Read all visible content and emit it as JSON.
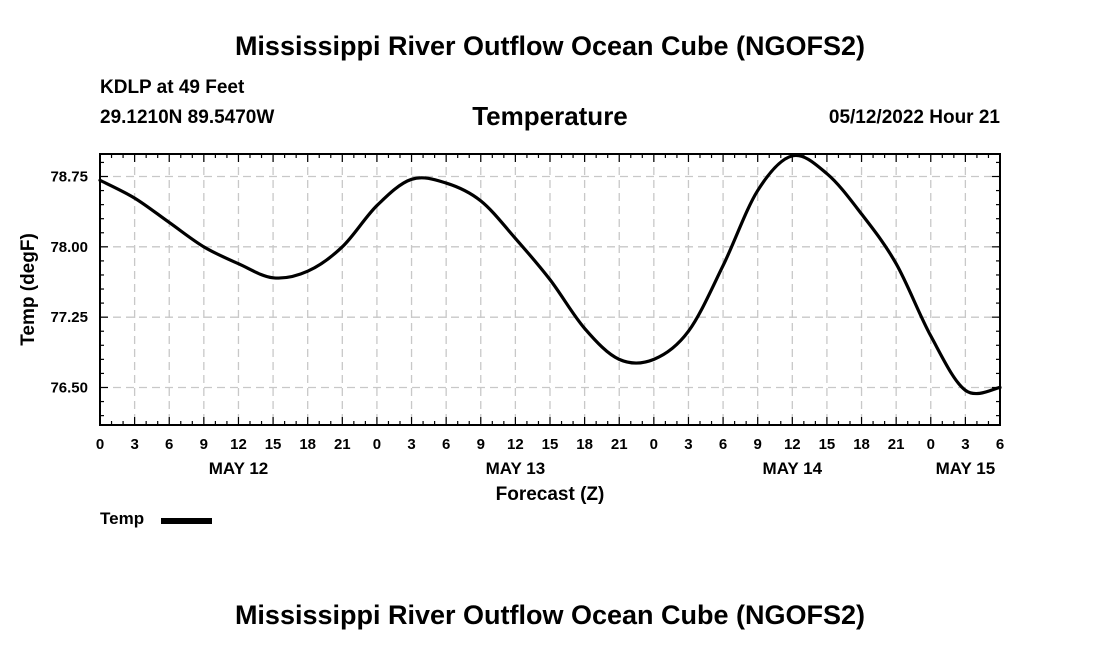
{
  "page": {
    "title_top": "Mississippi River Outflow Ocean Cube (NGOFS2)",
    "title_bottom": "Mississippi River Outflow Ocean Cube (NGOFS2)",
    "station": "KDLP at 49 Feet",
    "coords": "29.1210N  89.5470W",
    "variable": "Temperature",
    "run": "05/12/2022 Hour 21"
  },
  "colors": {
    "line": "#000000",
    "grid": "#c8c8c8",
    "frame": "#000000"
  },
  "chart_data": {
    "type": "line",
    "title": "Temperature",
    "xlabel": "Forecast (Z)",
    "ylabel": "Temp (degF)",
    "xlim": [
      0,
      78
    ],
    "ylim": [
      76.1,
      78.99
    ],
    "x_unit": "hours since May 12 00Z",
    "x_ticks": [
      0,
      3,
      6,
      9,
      12,
      15,
      18,
      21,
      24,
      27,
      30,
      33,
      36,
      39,
      42,
      45,
      48,
      51,
      54,
      57,
      60,
      63,
      66,
      69,
      72,
      75,
      78
    ],
    "x_tick_labels": [
      "0",
      "3",
      "6",
      "9",
      "12",
      "15",
      "18",
      "21",
      "0",
      "3",
      "6",
      "9",
      "12",
      "15",
      "18",
      "21",
      "0",
      "3",
      "6",
      "9",
      "12",
      "15",
      "18",
      "21",
      "0",
      "3",
      "6"
    ],
    "date_labels": [
      {
        "x": 12,
        "label": "MAY 12"
      },
      {
        "x": 36,
        "label": "MAY 13"
      },
      {
        "x": 60,
        "label": "MAY 14"
      },
      {
        "x": 75,
        "label": "MAY 15"
      }
    ],
    "y_ticks": [
      76.5,
      77.25,
      78.0,
      78.75
    ],
    "y_tick_labels": [
      "76.50",
      "77.25",
      "78.00",
      "78.75"
    ],
    "grid": true,
    "legend": {
      "position": "bottom-left",
      "entries": [
        "Temp"
      ]
    },
    "series": [
      {
        "name": "Temp",
        "x": [
          0,
          3,
          6,
          9,
          12,
          15,
          18,
          21,
          24,
          27,
          30,
          33,
          36,
          39,
          42,
          45,
          48,
          51,
          54,
          57,
          60,
          63,
          66,
          69,
          72,
          75,
          78
        ],
        "values": [
          78.71,
          78.52,
          78.26,
          78.0,
          77.82,
          77.67,
          77.74,
          78.0,
          78.44,
          78.72,
          78.68,
          78.49,
          78.09,
          77.65,
          77.13,
          76.8,
          76.8,
          77.1,
          77.8,
          78.6,
          78.97,
          78.78,
          78.35,
          77.82,
          77.05,
          76.47,
          76.5
        ]
      }
    ]
  }
}
